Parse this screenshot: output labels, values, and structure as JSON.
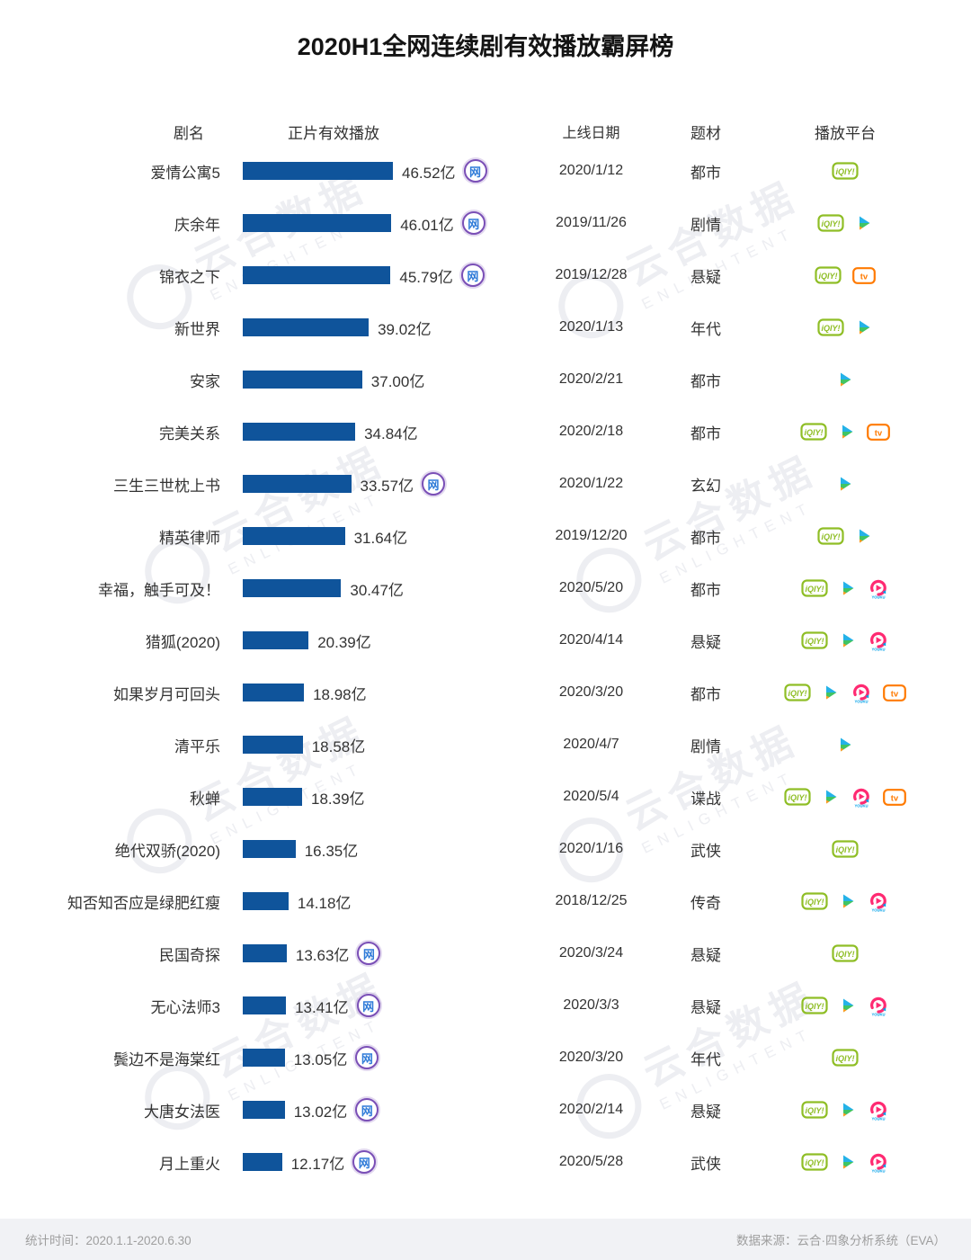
{
  "title": "2020H1全网连续剧有效播放霸屏榜",
  "columns": {
    "name": "剧名",
    "playback": "正片有效播放",
    "date": "上线日期",
    "genre": "题材",
    "platform": "播放平台"
  },
  "web_badge_label": "网",
  "icons": {
    "iqiyi": "iQIY!",
    "mango": "tv",
    "youku": "YOUKU"
  },
  "colors": {
    "bar": "#0f549b",
    "iqiyi_green": "#8fbe26",
    "mango_orange": "#ff7a00",
    "tencent_blue": "#24b2e8",
    "tencent_green": "#41c463",
    "tencent_orange": "#ff9a1f",
    "youku_pink": "#ff2a72",
    "youku_blue": "#00a0e9",
    "badge_ring": "#7a4fb6",
    "badge_text": "#2f7bd8",
    "watermark": "#edeef2",
    "footer_bg": "#f1f2f5",
    "footer_text": "#9e9e9e"
  },
  "watermark": {
    "cn": "云合数据",
    "en": "ENLIGHTENT"
  },
  "footer": {
    "left": "统计时间：2020.1.1-2020.6.30",
    "right": "数据来源：云合·四象分析系统（EVA）"
  },
  "chart_data": {
    "type": "bar",
    "orientation": "horizontal",
    "title": "2020H1全网连续剧有效播放霸屏榜",
    "unit": "亿",
    "value_label_column": "正片有效播放",
    "xlim": [
      0,
      46.52
    ],
    "rows": [
      {
        "name": "爱情公寓5",
        "value": 46.52,
        "label": "46.52亿",
        "web": true,
        "date": "2020/1/12",
        "genre": "都市",
        "platforms": [
          "iqiyi"
        ]
      },
      {
        "name": "庆余年",
        "value": 46.01,
        "label": "46.01亿",
        "web": true,
        "date": "2019/11/26",
        "genre": "剧情",
        "platforms": [
          "iqiyi",
          "tencent"
        ]
      },
      {
        "name": "锦衣之下",
        "value": 45.79,
        "label": "45.79亿",
        "web": true,
        "date": "2019/12/28",
        "genre": "悬疑",
        "platforms": [
          "iqiyi",
          "mango"
        ]
      },
      {
        "name": "新世界",
        "value": 39.02,
        "label": "39.02亿",
        "web": false,
        "date": "2020/1/13",
        "genre": "年代",
        "platforms": [
          "iqiyi",
          "tencent"
        ]
      },
      {
        "name": "安家",
        "value": 37.0,
        "label": "37.00亿",
        "web": false,
        "date": "2020/2/21",
        "genre": "都市",
        "platforms": [
          "tencent"
        ]
      },
      {
        "name": "完美关系",
        "value": 34.84,
        "label": "34.84亿",
        "web": false,
        "date": "2020/2/18",
        "genre": "都市",
        "platforms": [
          "iqiyi",
          "tencent",
          "mango"
        ]
      },
      {
        "name": "三生三世枕上书",
        "value": 33.57,
        "label": "33.57亿",
        "web": true,
        "date": "2020/1/22",
        "genre": "玄幻",
        "platforms": [
          "tencent"
        ]
      },
      {
        "name": "精英律师",
        "value": 31.64,
        "label": "31.64亿",
        "web": false,
        "date": "2019/12/20",
        "genre": "都市",
        "platforms": [
          "iqiyi",
          "tencent"
        ]
      },
      {
        "name": "幸福，触手可及！",
        "value": 30.47,
        "label": "30.47亿",
        "web": false,
        "date": "2020/5/20",
        "genre": "都市",
        "platforms": [
          "iqiyi",
          "tencent",
          "youku"
        ]
      },
      {
        "name": "猎狐(2020)",
        "value": 20.39,
        "label": "20.39亿",
        "web": false,
        "date": "2020/4/14",
        "genre": "悬疑",
        "platforms": [
          "iqiyi",
          "tencent",
          "youku"
        ]
      },
      {
        "name": "如果岁月可回头",
        "value": 18.98,
        "label": "18.98亿",
        "web": false,
        "date": "2020/3/20",
        "genre": "都市",
        "platforms": [
          "iqiyi",
          "tencent",
          "youku",
          "mango"
        ]
      },
      {
        "name": "清平乐",
        "value": 18.58,
        "label": "18.58亿",
        "web": false,
        "date": "2020/4/7",
        "genre": "剧情",
        "platforms": [
          "tencent"
        ]
      },
      {
        "name": "秋蝉",
        "value": 18.39,
        "label": "18.39亿",
        "web": false,
        "date": "2020/5/4",
        "genre": "谍战",
        "platforms": [
          "iqiyi",
          "tencent",
          "youku",
          "mango"
        ]
      },
      {
        "name": "绝代双骄(2020)",
        "value": 16.35,
        "label": "16.35亿",
        "web": false,
        "date": "2020/1/16",
        "genre": "武侠",
        "platforms": [
          "iqiyi"
        ]
      },
      {
        "name": "知否知否应是绿肥红瘦",
        "value": 14.18,
        "label": "14.18亿",
        "web": false,
        "date": "2018/12/25",
        "genre": "传奇",
        "platforms": [
          "iqiyi",
          "tencent",
          "youku"
        ]
      },
      {
        "name": "民国奇探",
        "value": 13.63,
        "label": "13.63亿",
        "web": true,
        "date": "2020/3/24",
        "genre": "悬疑",
        "platforms": [
          "iqiyi"
        ]
      },
      {
        "name": "无心法师3",
        "value": 13.41,
        "label": "13.41亿",
        "web": true,
        "date": "2020/3/3",
        "genre": "悬疑",
        "platforms": [
          "iqiyi",
          "tencent",
          "youku"
        ]
      },
      {
        "name": "鬓边不是海棠红",
        "value": 13.05,
        "label": "13.05亿",
        "web": true,
        "date": "2020/3/20",
        "genre": "年代",
        "platforms": [
          "iqiyi"
        ]
      },
      {
        "name": "大唐女法医",
        "value": 13.02,
        "label": "13.02亿",
        "web": true,
        "date": "2020/2/14",
        "genre": "悬疑",
        "platforms": [
          "iqiyi",
          "tencent",
          "youku"
        ]
      },
      {
        "name": "月上重火",
        "value": 12.17,
        "label": "12.17亿",
        "web": true,
        "date": "2020/5/28",
        "genre": "武侠",
        "platforms": [
          "iqiyi",
          "tencent",
          "youku"
        ]
      }
    ]
  }
}
